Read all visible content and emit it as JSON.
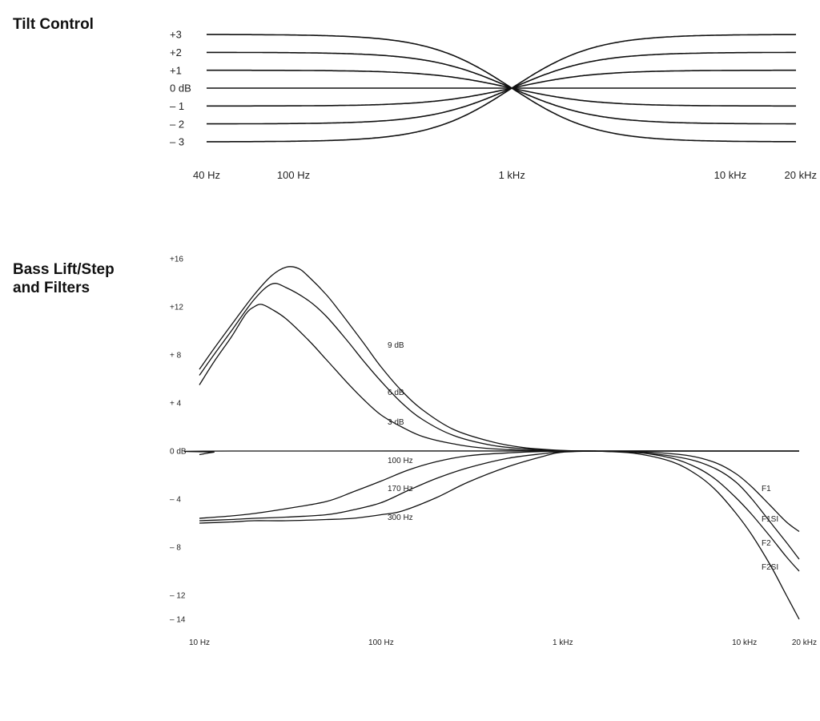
{
  "chart_data": [
    {
      "type": "line",
      "title": "Tilt Control",
      "x_scale": "log",
      "xlim_hz": [
        40,
        20000
      ],
      "x_tick_values": [
        40,
        100,
        1000,
        10000,
        20000
      ],
      "x_tick_labels": [
        "40 Hz",
        "100 Hz",
        "1 kHz",
        "10 kHz",
        "20 kHz"
      ],
      "ylim_db": [
        -3,
        3
      ],
      "y_tick_values": [
        3,
        2,
        1,
        0,
        -1,
        -2,
        -3
      ],
      "y_tick_labels": [
        "+3",
        "+2",
        "+1",
        "0 dB",
        "– 1",
        "– 2",
        "– 3"
      ],
      "grid": false,
      "series": [
        {
          "low_shelf_db": 3,
          "high_shelf_db": -3
        },
        {
          "low_shelf_db": 2,
          "high_shelf_db": -2
        },
        {
          "low_shelf_db": 1,
          "high_shelf_db": -1
        },
        {
          "low_shelf_db": 0,
          "high_shelf_db": 0
        },
        {
          "low_shelf_db": -1,
          "high_shelf_db": 1
        },
        {
          "low_shelf_db": -2,
          "high_shelf_db": 2
        },
        {
          "low_shelf_db": -3,
          "high_shelf_db": 3
        }
      ],
      "pivot_hz": 1000
    },
    {
      "type": "line",
      "title": "Bass Lift/Step\nand Filters",
      "x_scale": "log",
      "xlim_hz": [
        10,
        20000
      ],
      "x_tick_values": [
        10,
        100,
        1000,
        10000,
        20000
      ],
      "x_tick_labels": [
        "10 Hz",
        "100 Hz",
        "1 kHz",
        "10 kHz",
        "20 kHz"
      ],
      "ylim_db": [
        -14,
        16
      ],
      "y_tick_values": [
        16,
        12,
        8,
        4,
        0,
        -4,
        -8,
        -12,
        -14
      ],
      "y_tick_labels": [
        "+16",
        "+12",
        "+ 8",
        "+ 4",
        "0 dB",
        "– 4",
        "– 8",
        "– 12",
        "– 14"
      ],
      "grid": false,
      "series": [
        {
          "name": "9 dB",
          "points": [
            [
              10,
              6.8
            ],
            [
              12,
              8.5
            ],
            [
              15,
              10.5
            ],
            [
              20,
              13
            ],
            [
              25,
              14.6
            ],
            [
              30,
              15.3
            ],
            [
              35,
              15.2
            ],
            [
              40,
              14.5
            ],
            [
              50,
              13
            ],
            [
              60,
              11.5
            ],
            [
              80,
              9
            ],
            [
              100,
              7
            ],
            [
              130,
              5
            ],
            [
              170,
              3.4
            ],
            [
              250,
              1.8
            ],
            [
              400,
              0.8
            ],
            [
              600,
              0.3
            ],
            [
              1000,
              0.05
            ],
            [
              1500,
              0
            ],
            [
              3000,
              0
            ],
            [
              10000,
              0
            ],
            [
              20000,
              0
            ]
          ]
        },
        {
          "name": "6 dB",
          "points": [
            [
              10,
              6.3
            ],
            [
              12,
              8
            ],
            [
              15,
              10
            ],
            [
              20,
              12.6
            ],
            [
              25,
              13.9
            ],
            [
              30,
              13.6
            ],
            [
              40,
              12.5
            ],
            [
              50,
              11.2
            ],
            [
              65,
              9.2
            ],
            [
              80,
              7.5
            ],
            [
              100,
              5.8
            ],
            [
              130,
              4
            ],
            [
              170,
              2.6
            ],
            [
              250,
              1.3
            ],
            [
              400,
              0.5
            ],
            [
              600,
              0.2
            ],
            [
              1000,
              0.03
            ],
            [
              1500,
              0
            ],
            [
              3000,
              0
            ],
            [
              10000,
              0
            ],
            [
              20000,
              0
            ]
          ]
        },
        {
          "name": "3 dB",
          "points": [
            [
              10,
              5.5
            ],
            [
              12,
              7.4
            ],
            [
              15,
              9.5
            ],
            [
              18,
              11.4
            ],
            [
              20,
              12
            ],
            [
              22,
              12.2
            ],
            [
              25,
              11.8
            ],
            [
              30,
              11
            ],
            [
              40,
              9.2
            ],
            [
              50,
              7.6
            ],
            [
              65,
              5.7
            ],
            [
              80,
              4.3
            ],
            [
              100,
              3
            ],
            [
              130,
              2
            ],
            [
              170,
              1.2
            ],
            [
              250,
              0.6
            ],
            [
              400,
              0.2
            ],
            [
              1000,
              0
            ],
            [
              3000,
              0
            ],
            [
              10000,
              0
            ],
            [
              20000,
              0
            ]
          ]
        },
        {
          "name": "0 dB",
          "points": [
            [
              10,
              -0.3
            ],
            [
              12,
              -0.1
            ],
            [
              15,
              0
            ],
            [
              20000,
              0
            ]
          ]
        },
        {
          "name": "100 Hz",
          "points": [
            [
              10,
              -5.6
            ],
            [
              15,
              -5.4
            ],
            [
              20,
              -5.2
            ],
            [
              30,
              -4.8
            ],
            [
              50,
              -4.2
            ],
            [
              70,
              -3.4
            ],
            [
              100,
              -2.5
            ],
            [
              140,
              -1.6
            ],
            [
              200,
              -0.9
            ],
            [
              300,
              -0.4
            ],
            [
              500,
              -0.15
            ],
            [
              1000,
              0
            ],
            [
              1500,
              0
            ]
          ]
        },
        {
          "name": "170 Hz",
          "points": [
            [
              10,
              -5.8
            ],
            [
              15,
              -5.7
            ],
            [
              20,
              -5.6
            ],
            [
              30,
              -5.5
            ],
            [
              50,
              -5.3
            ],
            [
              70,
              -4.9
            ],
            [
              100,
              -4.3
            ],
            [
              140,
              -3.3
            ],
            [
              200,
              -2.3
            ],
            [
              300,
              -1.4
            ],
            [
              500,
              -0.6
            ],
            [
              800,
              -0.2
            ],
            [
              1000,
              -0.05
            ],
            [
              1500,
              0
            ]
          ]
        },
        {
          "name": "300 Hz",
          "points": [
            [
              10,
              -6
            ],
            [
              15,
              -5.9
            ],
            [
              20,
              -5.8
            ],
            [
              30,
              -5.8
            ],
            [
              50,
              -5.7
            ],
            [
              70,
              -5.6
            ],
            [
              100,
              -5.3
            ],
            [
              130,
              -5
            ],
            [
              200,
              -3.9
            ],
            [
              300,
              -2.6
            ],
            [
              500,
              -1.3
            ],
            [
              800,
              -0.4
            ],
            [
              1000,
              -0.1
            ],
            [
              1500,
              0
            ]
          ]
        },
        {
          "name": "F1",
          "points": [
            [
              1500,
              0
            ],
            [
              3000,
              -0.1
            ],
            [
              5000,
              -0.4
            ],
            [
              7000,
              -1
            ],
            [
              9000,
              -1.9
            ],
            [
              11000,
              -3
            ],
            [
              14000,
              -4.6
            ],
            [
              17000,
              -5.9
            ],
            [
              20000,
              -6.7
            ]
          ]
        },
        {
          "name": "F1SI",
          "points": [
            [
              1500,
              0
            ],
            [
              3000,
              -0.2
            ],
            [
              5000,
              -0.7
            ],
            [
              7000,
              -1.5
            ],
            [
              9000,
              -2.6
            ],
            [
              11000,
              -4
            ],
            [
              14000,
              -6
            ],
            [
              17000,
              -7.6
            ],
            [
              20000,
              -9
            ]
          ]
        },
        {
          "name": "F2",
          "points": [
            [
              1500,
              0
            ],
            [
              2500,
              -0.1
            ],
            [
              4000,
              -0.6
            ],
            [
              5500,
              -1.4
            ],
            [
              7000,
              -2.4
            ],
            [
              9000,
              -3.9
            ],
            [
              11000,
              -5.3
            ],
            [
              14000,
              -7.2
            ],
            [
              17000,
              -8.8
            ],
            [
              20000,
              -10
            ]
          ]
        },
        {
          "name": "F2SI",
          "points": [
            [
              1500,
              0
            ],
            [
              2500,
              -0.2
            ],
            [
              4000,
              -0.9
            ],
            [
              5500,
              -2
            ],
            [
              7000,
              -3.3
            ],
            [
              9000,
              -5.2
            ],
            [
              11000,
              -7
            ],
            [
              14000,
              -9.6
            ],
            [
              17000,
              -12
            ],
            [
              20000,
              -14
            ]
          ]
        }
      ]
    }
  ]
}
